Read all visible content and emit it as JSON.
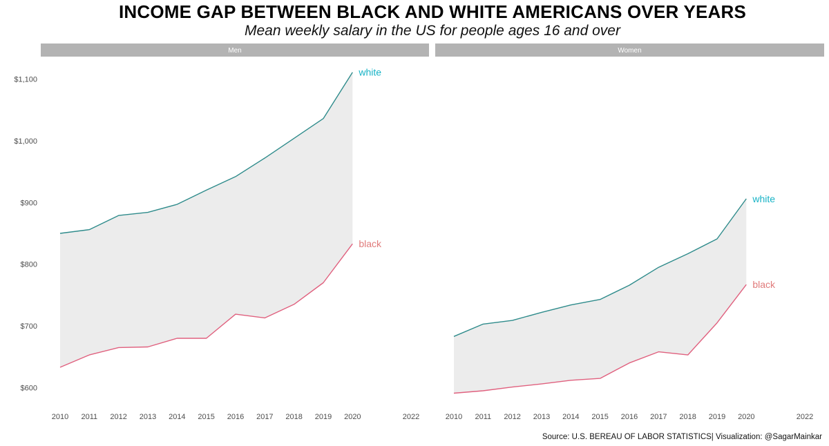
{
  "title": "INCOME GAP BETWEEN BLACK AND WHITE AMERICANS OVER YEARS",
  "subtitle": "Mean weekly salary in the US for people ages 16 and over",
  "caption": "Source: U.S. BEREAU OF LABOR STATISTICS| Visualization: @SagarMainkar",
  "colors": {
    "white": "#2e8b8b",
    "black": "#e0607e",
    "white_label": "#17b3c6",
    "black_label": "#e07a7a",
    "ribbon": "#ececec",
    "strip": "#b3b3b3"
  },
  "chart_data": [
    {
      "type": "line",
      "panel": "Men",
      "x": [
        2010,
        2011,
        2012,
        2013,
        2014,
        2015,
        2016,
        2017,
        2018,
        2019,
        2020
      ],
      "xticks": [
        "2010",
        "2011",
        "2012",
        "2013",
        "2014",
        "2015",
        "2016",
        "2017",
        "2018",
        "2019",
        "2020",
        "2022"
      ],
      "yticks": [
        "$600",
        "$700",
        "$800",
        "$900",
        "$1,000",
        "$1,100"
      ],
      "xlim": [
        2010,
        2022
      ],
      "ylim": [
        590,
        1118
      ],
      "grid": false,
      "shaded_gap": true,
      "series": [
        {
          "name": "white",
          "values": [
            850,
            856,
            879,
            884,
            897,
            920,
            942,
            972,
            1004,
            1036,
            1111
          ]
        },
        {
          "name": "black",
          "values": [
            633,
            653,
            665,
            666,
            680,
            680,
            719,
            713,
            735,
            770,
            833
          ]
        }
      ]
    },
    {
      "type": "line",
      "panel": "Women",
      "x": [
        2010,
        2011,
        2012,
        2013,
        2014,
        2015,
        2016,
        2017,
        2018,
        2019,
        2020
      ],
      "xticks": [
        "2010",
        "2011",
        "2012",
        "2013",
        "2014",
        "2015",
        "2016",
        "2017",
        "2018",
        "2019",
        "2020",
        "2022"
      ],
      "yticks": [
        "$600",
        "$700",
        "$800",
        "$900",
        "$1,000",
        "$1,100"
      ],
      "xlim": [
        2010,
        2022
      ],
      "ylim": [
        590,
        1118
      ],
      "grid": false,
      "shaded_gap": true,
      "series": [
        {
          "name": "white",
          "values": [
            683,
            703,
            709,
            722,
            734,
            743,
            766,
            795,
            817,
            841,
            906
          ]
        },
        {
          "name": "black",
          "values": [
            591,
            595,
            601,
            606,
            612,
            615,
            640,
            658,
            653,
            705,
            767
          ]
        }
      ]
    }
  ]
}
